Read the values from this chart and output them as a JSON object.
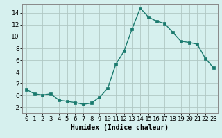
{
  "x": [
    0,
    1,
    2,
    3,
    4,
    5,
    6,
    7,
    8,
    9,
    10,
    11,
    12,
    13,
    14,
    15,
    16,
    17,
    18,
    19,
    20,
    21,
    22,
    23
  ],
  "y": [
    1,
    0.3,
    0.1,
    0.3,
    -0.8,
    -1.0,
    -1.2,
    -1.5,
    -1.3,
    -0.3,
    1.2,
    5.3,
    7.5,
    11.3,
    14.8,
    13.3,
    12.6,
    12.2,
    10.7,
    9.2,
    9.0,
    8.7,
    6.3,
    4.7
  ],
  "xlabel": "Humidex (Indice chaleur)",
  "line_color": "#1a7a6e",
  "marker_color": "#1a7a6e",
  "bg_color": "#d6f0ee",
  "grid_color": "#b0c8c4",
  "ylim": [
    -3,
    15.5
  ],
  "xlim": [
    -0.5,
    23.5
  ],
  "yticks": [
    -2,
    0,
    2,
    4,
    6,
    8,
    10,
    12,
    14
  ],
  "xtick_labels": [
    "0",
    "1",
    "2",
    "3",
    "4",
    "5",
    "6",
    "7",
    "8",
    "9",
    "10",
    "11",
    "12",
    "13",
    "14",
    "15",
    "16",
    "17",
    "18",
    "19",
    "20",
    "21",
    "22",
    "23"
  ],
  "xlabel_fontsize": 7,
  "tick_fontsize": 6.5
}
